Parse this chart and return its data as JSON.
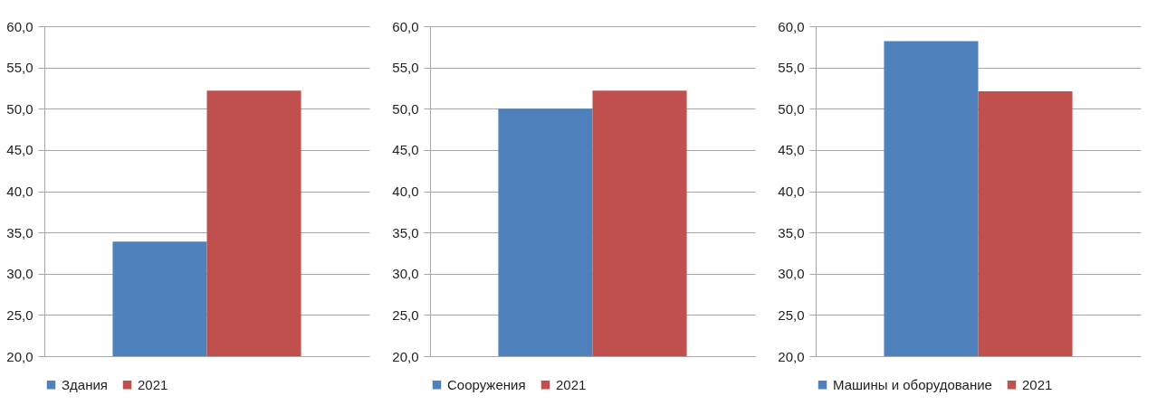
{
  "chart_data": [
    {
      "type": "bar",
      "categories": [
        null
      ],
      "series": [
        {
          "name": "Здания",
          "color": "#4f81bd",
          "values": [
            33.9
          ]
        },
        {
          "name": "2021",
          "color": "#c0504d",
          "values": [
            52.2
          ]
        }
      ],
      "ylim": [
        20,
        60
      ],
      "yticks": [
        {
          "value": 20,
          "label": "20,0"
        },
        {
          "value": 25,
          "label": "25,0"
        },
        {
          "value": 30,
          "label": "30,0"
        },
        {
          "value": 35,
          "label": "35,0"
        },
        {
          "value": 40,
          "label": "40,0"
        },
        {
          "value": 45,
          "label": "45,0"
        },
        {
          "value": 50,
          "label": "50,0"
        },
        {
          "value": 55,
          "label": "55,0"
        },
        {
          "value": 60,
          "label": "60,0"
        }
      ],
      "grid": "y",
      "legend": "bottom"
    },
    {
      "type": "bar",
      "categories": [
        null
      ],
      "series": [
        {
          "name": "Сооружения",
          "color": "#4f81bd",
          "values": [
            50.0
          ]
        },
        {
          "name": "2021",
          "color": "#c0504d",
          "values": [
            52.2
          ]
        }
      ],
      "ylim": [
        20,
        60
      ],
      "yticks": [
        {
          "value": 20,
          "label": "20,0"
        },
        {
          "value": 25,
          "label": "25,0"
        },
        {
          "value": 30,
          "label": "30,0"
        },
        {
          "value": 35,
          "label": "35,0"
        },
        {
          "value": 40,
          "label": "40,0"
        },
        {
          "value": 45,
          "label": "45,0"
        },
        {
          "value": 50,
          "label": "50,0"
        },
        {
          "value": 55,
          "label": "55,0"
        },
        {
          "value": 60,
          "label": "60,0"
        }
      ],
      "grid": "y",
      "legend": "bottom"
    },
    {
      "type": "bar",
      "categories": [
        null
      ],
      "series": [
        {
          "name": "Машины и оборудование",
          "color": "#4f81bd",
          "values": [
            58.2
          ]
        },
        {
          "name": "2021",
          "color": "#c0504d",
          "values": [
            52.1
          ]
        }
      ],
      "ylim": [
        20,
        60
      ],
      "yticks": [
        {
          "value": 20,
          "label": "20,0"
        },
        {
          "value": 25,
          "label": "25,0"
        },
        {
          "value": 30,
          "label": "30,0"
        },
        {
          "value": 35,
          "label": "35,0"
        },
        {
          "value": 40,
          "label": "40,0"
        },
        {
          "value": 45,
          "label": "45,0"
        },
        {
          "value": 50,
          "label": "50,0"
        },
        {
          "value": 55,
          "label": "55,0"
        },
        {
          "value": 60,
          "label": "60,0"
        }
      ],
      "grid": "y",
      "legend": "bottom"
    }
  ]
}
